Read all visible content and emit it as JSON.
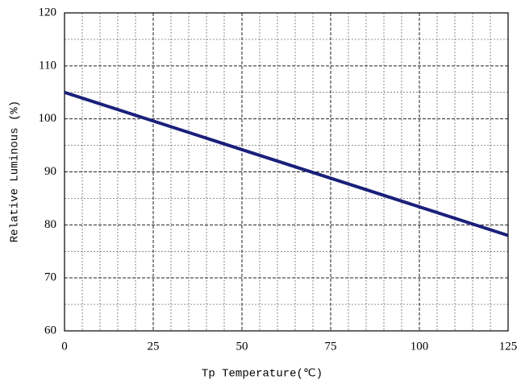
{
  "chart_data": {
    "type": "line",
    "x_label": "Tp Temperature(℃)",
    "y_label": "Relative Luminous (%)",
    "x": [
      0,
      125
    ],
    "series": [
      {
        "color": "#1a1f7a",
        "values": [
          105,
          78
        ]
      }
    ],
    "xlim": [
      0,
      125
    ],
    "xticks": [
      0,
      25,
      50,
      75,
      100,
      125
    ],
    "ylim": [
      60,
      120
    ],
    "yticks": [
      60,
      70,
      80,
      90,
      100,
      110,
      120
    ],
    "xminorticks": [
      5,
      10,
      15,
      20,
      30,
      35,
      40,
      45,
      55,
      60,
      65,
      70,
      80,
      85,
      90,
      95,
      105,
      110,
      115,
      120
    ],
    "yminorticks": [
      65,
      75,
      85,
      95,
      105,
      115
    ],
    "grid": true
  }
}
